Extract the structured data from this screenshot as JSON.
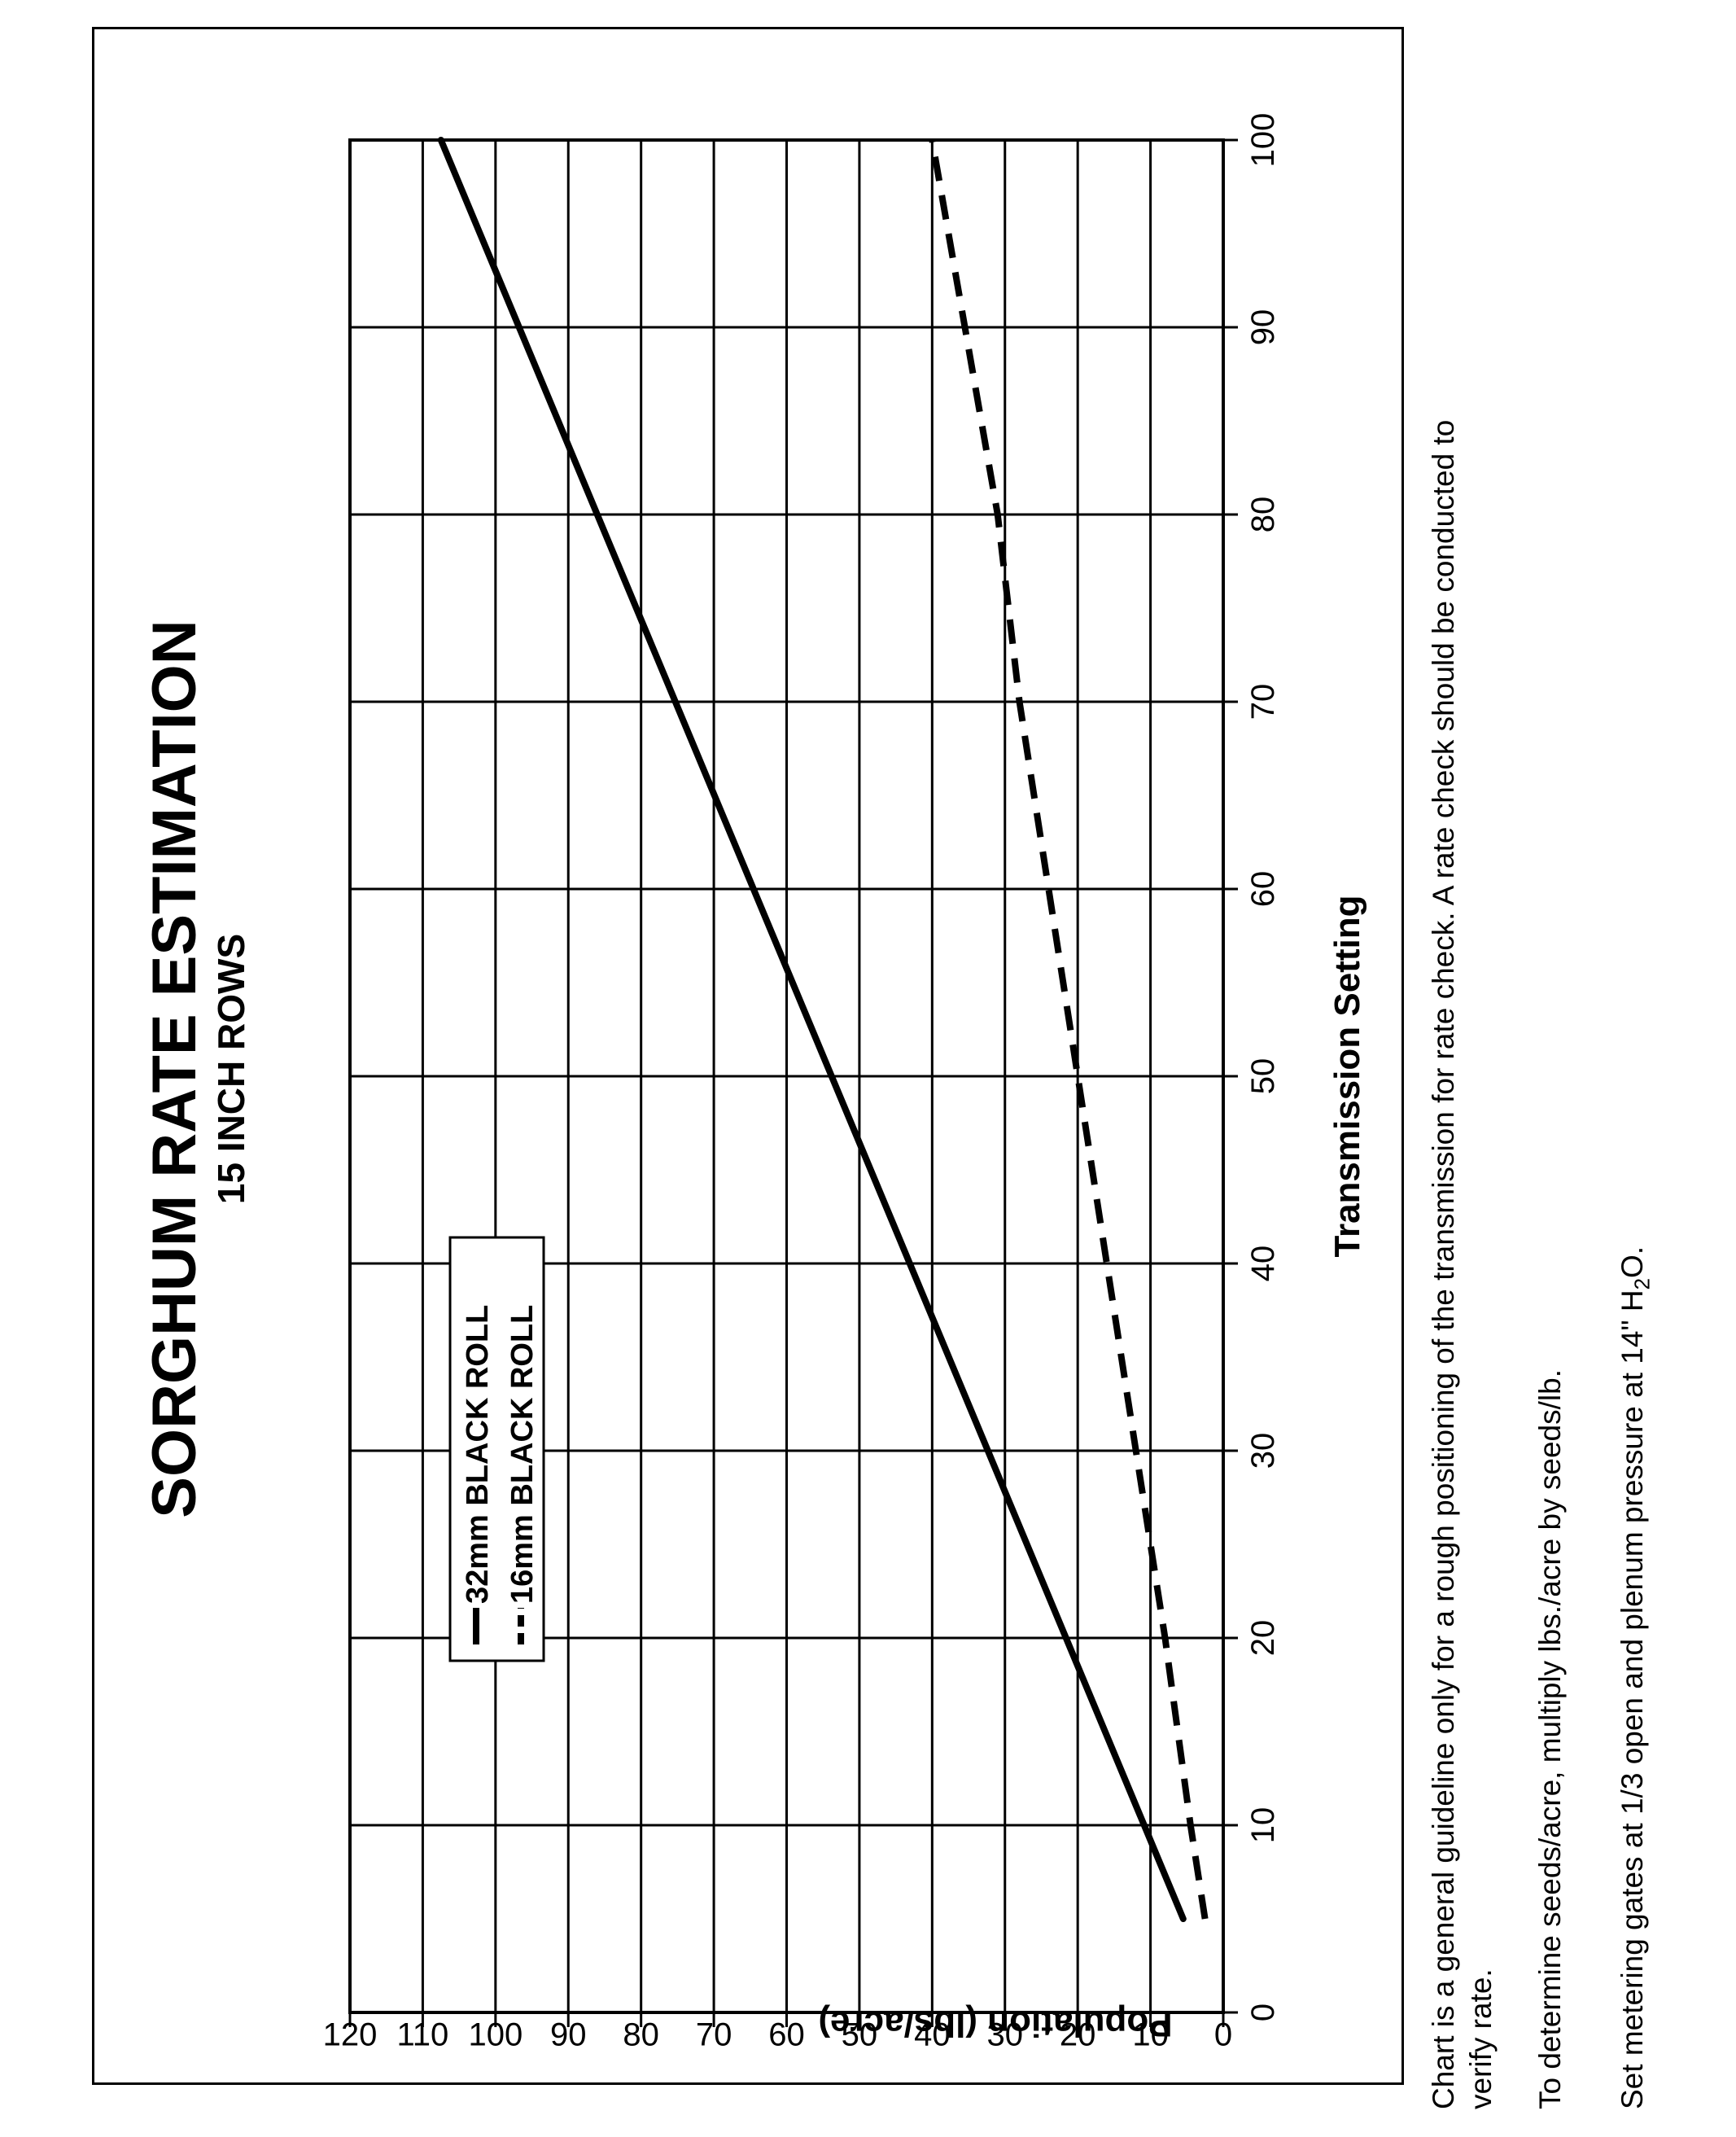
{
  "chart_data": {
    "type": "line",
    "title": "SORGHUM RATE ESTIMATION",
    "subtitle": "15 INCH ROWS",
    "xlabel": "Transmission Setting",
    "ylabel": "Population (lbs/acre)",
    "xlim": [
      0,
      100
    ],
    "ylim": [
      0,
      120
    ],
    "x_ticks": [
      0,
      10,
      20,
      30,
      40,
      50,
      60,
      70,
      80,
      90,
      100
    ],
    "y_ticks": [
      0,
      10,
      20,
      30,
      40,
      50,
      60,
      70,
      80,
      90,
      100,
      110,
      120
    ],
    "grid": true,
    "legend_position": "top-left",
    "series": [
      {
        "name": "32mm BLACK ROLL",
        "style": "solid",
        "x": [
          5,
          100
        ],
        "y": [
          5.5,
          107.5
        ]
      },
      {
        "name": "16mm BLACK ROLL",
        "style": "dashed",
        "x": [
          5,
          10,
          20,
          30,
          40,
          50,
          60,
          70,
          80,
          100
        ],
        "y": [
          2.5,
          4.5,
          8,
          12,
          16,
          20,
          24,
          28,
          31,
          40
        ]
      }
    ]
  },
  "notes": {
    "note1_line1": "Chart is a general guideline only for a rough positioning of the transmission for rate check. A rate check should be conducted to",
    "note1_line2": "verify rate.",
    "note2": "To determine seeds/acre, multiply lbs./acre by seeds/lb.",
    "note3_pre": "Set metering gates at 1/3 open and plenum pressure at 14\" H",
    "note3_sub": "2",
    "note3_post": "O."
  },
  "colors": {
    "line": "#000000",
    "background": "#ffffff"
  }
}
